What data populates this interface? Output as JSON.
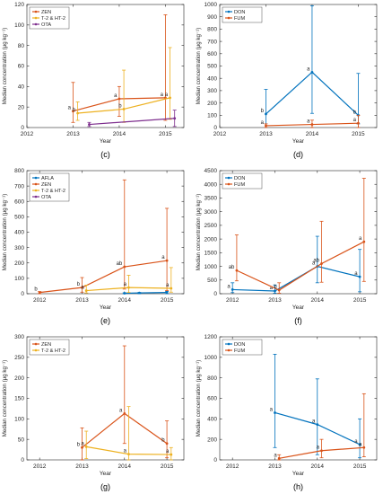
{
  "colors": {
    "blue": "#0072BD",
    "orange": "#D95319",
    "yellow": "#EDB120",
    "purple": "#7E2F8E"
  },
  "chart_data": [
    {
      "type": "line",
      "panel_label": "(c)",
      "xlabel": "Year",
      "ylabel": "Median concentration (μg kg⁻¹)",
      "xlim": [
        2012,
        2015.4
      ],
      "ylim": [
        0,
        120
      ],
      "xticks": [
        "2012",
        "2013",
        "2014",
        "2015"
      ],
      "yticks": [
        "0",
        "20",
        "40",
        "60",
        "80",
        "100",
        "120"
      ],
      "legend_position": "top-left",
      "series": [
        {
          "name": "ZEN",
          "color": "orange",
          "points": [
            {
              "x": 2013,
              "y": 16,
              "lo": 5,
              "hi": 44,
              "label": "a"
            },
            {
              "x": 2014,
              "y": 28,
              "lo": 11,
              "hi": 40,
              "label": "a"
            },
            {
              "x": 2015,
              "y": 29,
              "lo": 7,
              "hi": 110,
              "label": "a"
            }
          ]
        },
        {
          "name": "T-2 & HT-2",
          "color": "yellow",
          "points": [
            {
              "x": 2013.1,
              "y": 14,
              "lo": 7,
              "hi": 25,
              "label": "b"
            },
            {
              "x": 2014.1,
              "y": 18,
              "lo": 5,
              "hi": 56,
              "label": "b"
            },
            {
              "x": 2015.1,
              "y": 29,
              "lo": 8,
              "hi": 78,
              "label": "a"
            }
          ]
        },
        {
          "name": "OTA",
          "color": "purple",
          "points": [
            {
              "x": 2013.35,
              "y": 3,
              "lo": 1,
              "hi": 5,
              "label": ""
            },
            {
              "x": 2015.2,
              "y": 9,
              "lo": 1,
              "hi": 17,
              "label": ""
            }
          ]
        }
      ]
    },
    {
      "type": "line",
      "panel_label": "(d)",
      "xlabel": "Year",
      "ylabel": "Median concentration (μg kg⁻¹)",
      "xlim": [
        2012,
        2015.4
      ],
      "ylim": [
        0,
        1000
      ],
      "xticks": [
        "2012",
        "2013",
        "2014",
        "2015"
      ],
      "yticks": [
        "0",
        "100",
        "200",
        "300",
        "400",
        "500",
        "600",
        "700",
        "800",
        "900",
        "1000"
      ],
      "legend_position": "top-left",
      "series": [
        {
          "name": "DON",
          "color": "blue",
          "points": [
            {
              "x": 2013,
              "y": 110,
              "lo": 0,
              "hi": 310,
              "label": "b"
            },
            {
              "x": 2014,
              "y": 450,
              "lo": 115,
              "hi": 990,
              "label": "a"
            },
            {
              "x": 2015,
              "y": 100,
              "lo": 30,
              "hi": 440,
              "label": "b"
            }
          ]
        },
        {
          "name": "FUM",
          "color": "orange",
          "points": [
            {
              "x": 2013,
              "y": 15,
              "lo": 0,
              "hi": 30,
              "label": "a"
            },
            {
              "x": 2014,
              "y": 25,
              "lo": 0,
              "hi": 60,
              "label": "a"
            },
            {
              "x": 2015,
              "y": 35,
              "lo": 0,
              "hi": 100,
              "label": "a"
            }
          ]
        }
      ]
    },
    {
      "type": "line",
      "panel_label": "(e)",
      "xlabel": "Year",
      "ylabel": "Median concentration (μg kg⁻¹)",
      "xlim": [
        2011.7,
        2015.4
      ],
      "ylim": [
        0,
        800
      ],
      "xticks": [
        "2012",
        "2013",
        "2014",
        "2015"
      ],
      "yticks": [
        "0",
        "100",
        "200",
        "300",
        "400",
        "500",
        "600",
        "700",
        "800"
      ],
      "legend_position": "top-left",
      "series": [
        {
          "name": "AFLA",
          "color": "blue",
          "points": [
            {
              "x": 2014,
              "y": 3,
              "lo": 0,
              "hi": 6,
              "label": ""
            },
            {
              "x": 2014.35,
              "y": 5,
              "lo": 0,
              "hi": 8,
              "label": ""
            },
            {
              "x": 2015,
              "y": 8,
              "lo": 0,
              "hi": 15,
              "label": ""
            }
          ]
        },
        {
          "name": "ZEN",
          "color": "orange",
          "points": [
            {
              "x": 2012,
              "y": 8,
              "lo": 0,
              "hi": 14,
              "label": "b"
            },
            {
              "x": 2013,
              "y": 40,
              "lo": 10,
              "hi": 105,
              "label": "b"
            },
            {
              "x": 2014,
              "y": 175,
              "lo": 30,
              "hi": 740,
              "label": "ab"
            },
            {
              "x": 2015,
              "y": 215,
              "lo": 20,
              "hi": 555,
              "label": "a"
            }
          ]
        },
        {
          "name": "T-2 & HT-2",
          "color": "yellow",
          "points": [
            {
              "x": 2013.1,
              "y": 20,
              "lo": 5,
              "hi": 55,
              "label": "a"
            },
            {
              "x": 2014.1,
              "y": 40,
              "lo": 8,
              "hi": 120,
              "label": "a"
            },
            {
              "x": 2015.1,
              "y": 35,
              "lo": 10,
              "hi": 170,
              "label": "a"
            }
          ]
        },
        {
          "name": "OTA",
          "color": "purple",
          "points": []
        }
      ]
    },
    {
      "type": "line",
      "panel_label": "(f)",
      "xlabel": "Year",
      "ylabel": "Median concentration (μg kg⁻¹)",
      "xlim": [
        2011.7,
        2015.4
      ],
      "ylim": [
        0,
        4500
      ],
      "xticks": [
        "2012",
        "2013",
        "2014",
        "2015"
      ],
      "yticks": [
        "0",
        "500",
        "1000",
        "1500",
        "2000",
        "2500",
        "3000",
        "3500",
        "4000",
        "4500"
      ],
      "legend_position": "top-left",
      "series": [
        {
          "name": "DON",
          "color": "blue",
          "points": [
            {
              "x": 2012,
              "y": 150,
              "lo": 40,
              "hi": 400,
              "label": "a"
            },
            {
              "x": 2013,
              "y": 100,
              "lo": 20,
              "hi": 320,
              "label": "a"
            },
            {
              "x": 2014,
              "y": 1000,
              "lo": 400,
              "hi": 2100,
              "label": "a"
            },
            {
              "x": 2015,
              "y": 620,
              "lo": 70,
              "hi": 1620,
              "label": "a"
            }
          ]
        },
        {
          "name": "FUM",
          "color": "orange",
          "points": [
            {
              "x": 2012.1,
              "y": 850,
              "lo": 470,
              "hi": 2150,
              "label": "ab"
            },
            {
              "x": 2013.1,
              "y": 130,
              "lo": 20,
              "hi": 400,
              "label": "b"
            },
            {
              "x": 2014.1,
              "y": 1100,
              "lo": 420,
              "hi": 2650,
              "label": "ab"
            },
            {
              "x": 2015.1,
              "y": 1900,
              "lo": 450,
              "hi": 4220,
              "label": "a"
            }
          ]
        }
      ]
    },
    {
      "type": "line",
      "panel_label": "(g)",
      "xlabel": "Year",
      "ylabel": "Median concentration (μg kg⁻¹)",
      "xlim": [
        2011.7,
        2015.4
      ],
      "ylim": [
        0,
        300
      ],
      "xticks": [
        "2012",
        "2013",
        "2014",
        "2015"
      ],
      "yticks": [
        "0",
        "50",
        "100",
        "150",
        "200",
        "250",
        "300"
      ],
      "legend_position": "top-left",
      "series": [
        {
          "name": "ZEN",
          "color": "orange",
          "points": [
            {
              "x": 2013,
              "y": 30,
              "lo": 0,
              "hi": 78,
              "label": "b"
            },
            {
              "x": 2014,
              "y": 113,
              "lo": 40,
              "hi": 278,
              "label": "a"
            },
            {
              "x": 2015,
              "y": 40,
              "lo": 5,
              "hi": 95,
              "label": "b"
            }
          ]
        },
        {
          "name": "T-2 & HT-2",
          "color": "yellow",
          "points": [
            {
              "x": 2013.1,
              "y": 32,
              "lo": 3,
              "hi": 70,
              "label": "a"
            },
            {
              "x": 2014.1,
              "y": 14,
              "lo": 0,
              "hi": 130,
              "label": "a"
            },
            {
              "x": 2015.1,
              "y": 13,
              "lo": 0,
              "hi": 30,
              "label": "a"
            }
          ]
        }
      ]
    },
    {
      "type": "line",
      "panel_label": "(h)",
      "xlabel": "Year",
      "ylabel": "Median concentration (μg kg⁻¹)",
      "xlim": [
        2011.7,
        2015.4
      ],
      "ylim": [
        0,
        1200
      ],
      "xticks": [
        "2012",
        "2013",
        "2014",
        "2015"
      ],
      "yticks": [
        "0",
        "200",
        "400",
        "600",
        "800",
        "1000",
        "1200"
      ],
      "legend_position": "top-left",
      "series": [
        {
          "name": "DON",
          "color": "blue",
          "points": [
            {
              "x": 2013,
              "y": 460,
              "lo": 120,
              "hi": 1030,
              "label": "a"
            },
            {
              "x": 2014,
              "y": 345,
              "lo": 50,
              "hi": 790,
              "label": "a"
            },
            {
              "x": 2015,
              "y": 150,
              "lo": 20,
              "hi": 400,
              "label": "a"
            }
          ]
        },
        {
          "name": "FUM",
          "color": "orange",
          "points": [
            {
              "x": 2013.1,
              "y": 15,
              "lo": 0,
              "hi": 50,
              "label": "a"
            },
            {
              "x": 2014.1,
              "y": 90,
              "lo": 20,
              "hi": 200,
              "label": "a"
            },
            {
              "x": 2015.1,
              "y": 120,
              "lo": 30,
              "hi": 645,
              "label": "a"
            }
          ]
        }
      ]
    }
  ]
}
